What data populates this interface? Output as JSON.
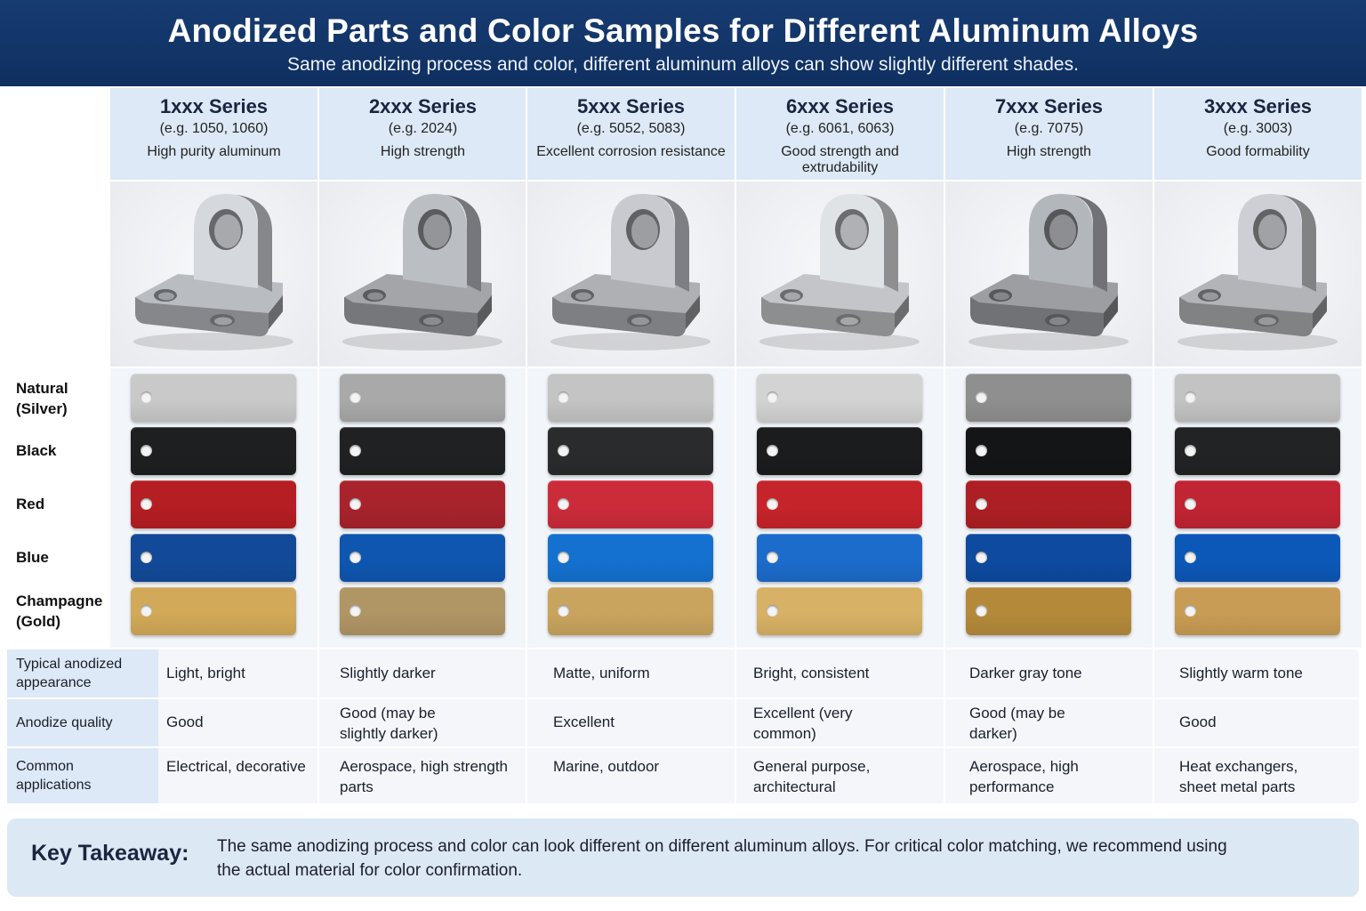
{
  "header": {
    "title": "Anodized Parts and Color Samples for Different Aluminum Alloys",
    "subtitle": "Same anodizing process and color, different aluminum alloys can show slightly different shades."
  },
  "alloys": [
    {
      "name": "1xxx Series",
      "example": "(e.g. 1050, 1060)",
      "description": "High purity aluminum"
    },
    {
      "name": "2xxx Series",
      "example": "(e.g. 2024)",
      "description": "High strength"
    },
    {
      "name": "5xxx Series",
      "example": "(e.g. 5052, 5083)",
      "description": "Excellent corrosion resistance"
    },
    {
      "name": "6xxx Series",
      "example": "(e.g. 6061, 6063)",
      "description": "Good strength and extrudability"
    },
    {
      "name": "7xxx Series",
      "example": "(e.g. 7075)",
      "description": "High strength"
    },
    {
      "name": "3xxx Series",
      "example": "(e.g. 3003)",
      "description": "Good formability"
    }
  ],
  "color_rows": [
    {
      "label_line1": "Natural",
      "label_line2": "(Silver)"
    },
    {
      "label_line1": "Black",
      "label_line2": ""
    },
    {
      "label_line1": "Red",
      "label_line2": ""
    },
    {
      "label_line1": "Blue",
      "label_line2": ""
    },
    {
      "label_line1": "Champagne",
      "label_line2": "(Gold)"
    }
  ],
  "swatch_colors": [
    [
      "#c9c9c9",
      "#1e1f21",
      "#b51e22",
      "#124a99",
      "#d2a958"
    ],
    [
      "#a9a9aa",
      "#202123",
      "#a8232c",
      "#0f56b0",
      "#b09565"
    ],
    [
      "#c4c4c4",
      "#2a2b2d",
      "#cc2b3a",
      "#1471cf",
      "#c9a45e"
    ],
    [
      "#d3d3d3",
      "#1b1c1e",
      "#c5242a",
      "#1c6ccc",
      "#d7b165"
    ],
    [
      "#8f8f90",
      "#141516",
      "#ad1f24",
      "#0d4aa0",
      "#b48a3a"
    ],
    [
      "#c3c3c3",
      "#222325",
      "#c12433",
      "#0c58b8",
      "#c89c54"
    ]
  ],
  "part_tones": [
    "#b9bcc0",
    "#a3a5a9",
    "#aeb0b4",
    "#c3c5c8",
    "#9c9ea2",
    "#b2b4b8"
  ],
  "properties": [
    {
      "label": "Typical anodized appearance",
      "values": [
        "Light, bright",
        "Slightly darker",
        "Matte, uniform",
        "Bright, consistent",
        "Darker gray tone",
        "Slightly warm tone"
      ]
    },
    {
      "label": "Anodize quality",
      "values": [
        "Good",
        "Good (may be slightly darker)",
        "Excellent",
        "Excellent (very common)",
        "Good (may be darker)",
        "Good"
      ]
    },
    {
      "label": "Common applications",
      "values": [
        "Electrical, decorative",
        "Aerospace, high strength parts",
        "Marine, outdoor",
        "General purpose, architectural",
        "Aerospace, high performance",
        "Heat exchangers, sheet metal parts"
      ]
    }
  ],
  "takeaway": {
    "heading": "Key Takeaway:",
    "text": "The same anodizing process and color can look different on different aluminum alloys. For critical color matching, we recommend using the actual material for color confirmation."
  }
}
